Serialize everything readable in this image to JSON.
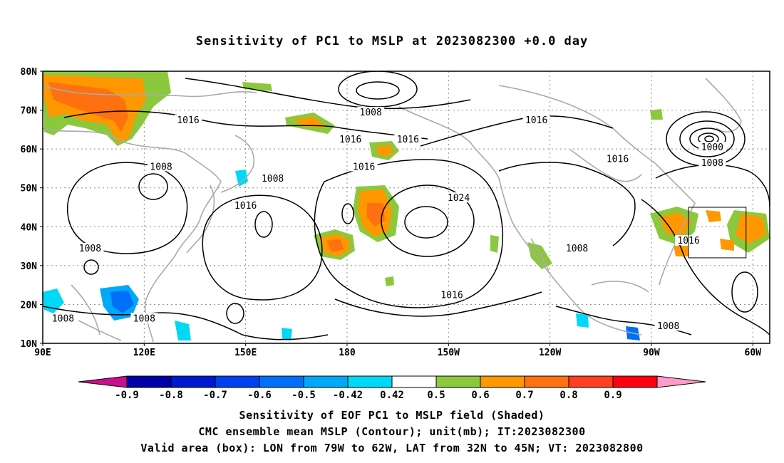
{
  "title": "Sensitivity of PC1 to MSLP at 2023082300 +0.0 day",
  "map": {
    "lat_ticks": [
      "80N",
      "70N",
      "60N",
      "50N",
      "40N",
      "30N",
      "20N",
      "10N"
    ],
    "lon_ticks": [
      "90E",
      "120E",
      "150E",
      "180",
      "150W",
      "120W",
      "90W",
      "60W"
    ],
    "lat_range": [
      10,
      80
    ],
    "lon_range": [
      90,
      305
    ],
    "contour_labels": [
      {
        "text": "1016",
        "lon": 133,
        "lat": 67
      },
      {
        "text": "1008",
        "lon": 187,
        "lat": 69
      },
      {
        "text": "1016",
        "lon": 236,
        "lat": 67
      },
      {
        "text": "1016",
        "lon": 181,
        "lat": 62
      },
      {
        "text": "1016",
        "lon": 198,
        "lat": 62
      },
      {
        "text": "1000",
        "lon": 288,
        "lat": 60
      },
      {
        "text": "1008",
        "lon": 288,
        "lat": 56
      },
      {
        "text": "1016",
        "lon": 260,
        "lat": 57
      },
      {
        "text": "1008",
        "lon": 125,
        "lat": 55
      },
      {
        "text": "1008",
        "lon": 158,
        "lat": 52
      },
      {
        "text": "1016",
        "lon": 185,
        "lat": 55
      },
      {
        "text": "1024",
        "lon": 213,
        "lat": 47
      },
      {
        "text": "1016",
        "lon": 150,
        "lat": 45
      },
      {
        "text": "1008",
        "lon": 104,
        "lat": 34
      },
      {
        "text": "1016",
        "lon": 281,
        "lat": 36
      },
      {
        "text": "1008",
        "lon": 248,
        "lat": 34
      },
      {
        "text": "1016",
        "lon": 211,
        "lat": 22
      },
      {
        "text": "1008",
        "lon": 96,
        "lat": 16
      },
      {
        "text": "1008",
        "lon": 120,
        "lat": 16
      },
      {
        "text": "1008",
        "lon": 275,
        "lat": 14
      }
    ],
    "valid_box": {
      "lon_min": 281,
      "lon_max": 298,
      "lat_min": 32,
      "lat_max": 45
    }
  },
  "colorbar": {
    "ticks": [
      "-0.9",
      "-0.8",
      "-0.7",
      "-0.6",
      "-0.5",
      "-0.42",
      "0.42",
      "0.5",
      "0.6",
      "0.7",
      "0.8",
      "0.9"
    ],
    "colors": [
      "#c8108c",
      "#0000a8",
      "#0018d0",
      "#0040f0",
      "#0070f8",
      "#00a8f8",
      "#00d8f8",
      "#ffffff",
      "#8cc83c",
      "#ff9800",
      "#ff7010",
      "#ff4020",
      "#ff0010",
      "#ff9ccc"
    ]
  },
  "footer": {
    "line1": "Sensitivity of EOF PC1 to MSLP field (Shaded)",
    "line2": "CMC ensemble mean MSLP (Contour); unit(mb); IT:2023082300",
    "line3": "Valid area (box): LON from 79W to 62W, LAT from 32N to 45N; VT: 2023082800"
  }
}
